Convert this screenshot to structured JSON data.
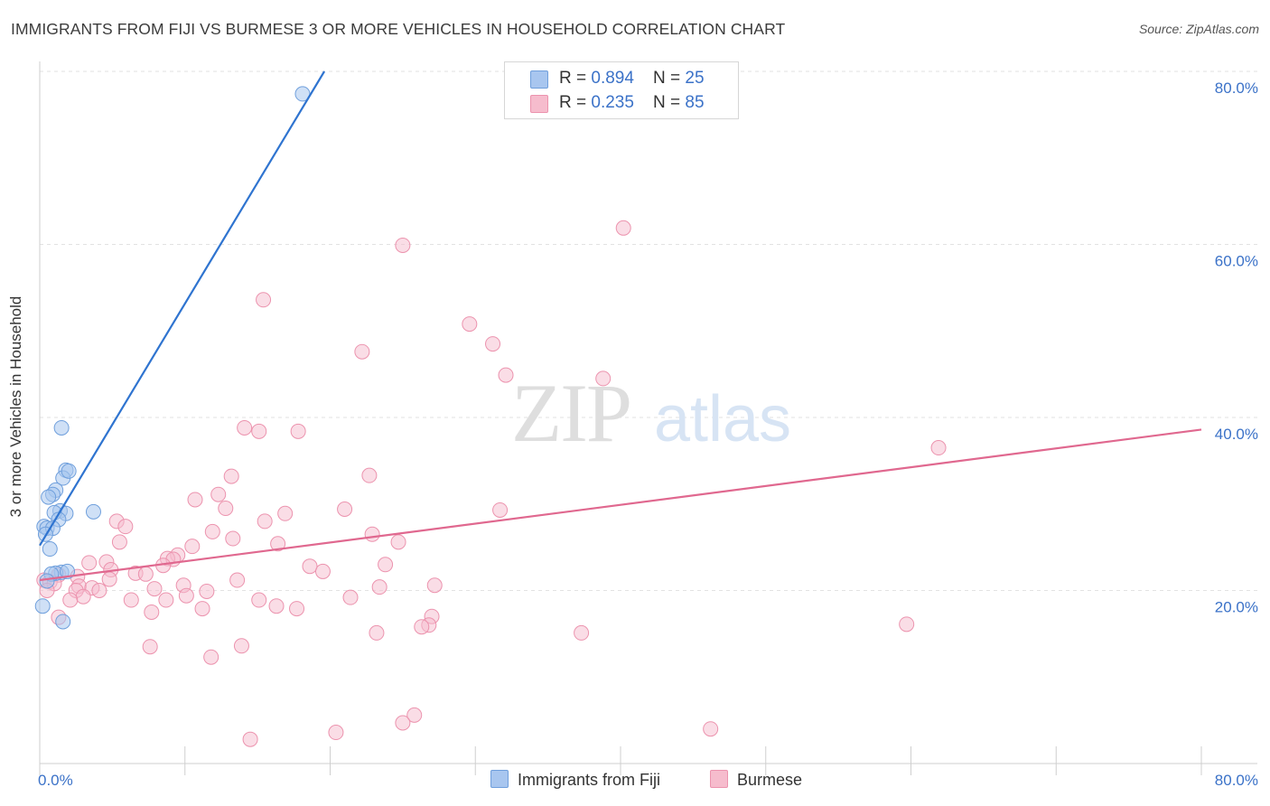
{
  "title": "IMMIGRANTS FROM FIJI VS BURMESE 3 OR MORE VEHICLES IN HOUSEHOLD CORRELATION CHART",
  "source": "Source: ZipAtlas.com",
  "watermark": {
    "zip": "ZIP",
    "atlas": "atlas"
  },
  "colors": {
    "fiji_fill": "#a8c6ef",
    "fiji_stroke": "#6f9fdc",
    "fiji_line": "#2f74d0",
    "burmese_fill": "#f6bccd",
    "burmese_stroke": "#ec93ae",
    "burmese_line": "#e0688f",
    "axis_value_text": "#3b72c8"
  },
  "legend_top": {
    "rows": [
      {
        "r_label": "R = ",
        "r_value": "0.894",
        "n_label": "N = ",
        "n_value": "25"
      },
      {
        "r_label": "R = ",
        "r_value": "0.235",
        "n_label": "N = ",
        "n_value": "85"
      }
    ]
  },
  "legend_bottom": {
    "fiji": "Immigrants from Fiji",
    "burmese": "Burmese"
  },
  "chart_data": {
    "type": "scatter",
    "title": "IMMIGRANTS FROM FIJI VS BURMESE 3 OR MORE VEHICLES IN HOUSEHOLD CORRELATION CHART",
    "xlabel": "",
    "ylabel": "3 or more Vehicles in Household",
    "xlim": [
      0,
      80
    ],
    "ylim": [
      0,
      80
    ],
    "x_tick_labels": [
      "0.0%",
      "80.0%"
    ],
    "y_tick_labels": [
      {
        "value": 20,
        "label": "20.0%"
      },
      {
        "value": 40,
        "label": "40.0%"
      },
      {
        "value": 60,
        "label": "60.0%"
      },
      {
        "value": 80,
        "label": "80.0%"
      }
    ],
    "grid": true,
    "series": [
      {
        "name": "Immigrants from Fiji",
        "color": "#a8c6ef",
        "r": 0.894,
        "n": 25,
        "trend": {
          "x": [
            0.0,
            19.6
          ],
          "y": [
            25.2,
            80.0
          ]
        },
        "points": [
          [
            18.1,
            77.4
          ],
          [
            1.5,
            38.8
          ],
          [
            1.8,
            33.9
          ],
          [
            1.6,
            33.0
          ],
          [
            2.0,
            33.8
          ],
          [
            1.1,
            31.6
          ],
          [
            0.9,
            31.1
          ],
          [
            0.6,
            30.8
          ],
          [
            1.4,
            29.2
          ],
          [
            1.8,
            28.9
          ],
          [
            1.0,
            29.0
          ],
          [
            3.7,
            29.1
          ],
          [
            1.3,
            28.2
          ],
          [
            0.3,
            27.4
          ],
          [
            0.5,
            27.2
          ],
          [
            0.9,
            27.2
          ],
          [
            0.4,
            26.5
          ],
          [
            0.7,
            24.8
          ],
          [
            1.5,
            22.1
          ],
          [
            1.1,
            22.0
          ],
          [
            0.8,
            21.9
          ],
          [
            1.9,
            22.2
          ],
          [
            0.5,
            21.1
          ],
          [
            0.2,
            18.2
          ],
          [
            1.6,
            16.4
          ]
        ]
      },
      {
        "name": "Burmese",
        "color": "#f6bccd",
        "r": 0.235,
        "n": 85,
        "trend": {
          "x": [
            0.0,
            80.0
          ],
          "y": [
            21.2,
            38.6
          ]
        },
        "points": [
          [
            40.2,
            61.9
          ],
          [
            25.0,
            59.9
          ],
          [
            15.4,
            53.6
          ],
          [
            29.6,
            50.8
          ],
          [
            31.2,
            48.5
          ],
          [
            22.2,
            47.6
          ],
          [
            32.1,
            44.9
          ],
          [
            38.8,
            44.5
          ],
          [
            61.9,
            36.5
          ],
          [
            14.1,
            38.8
          ],
          [
            15.1,
            38.4
          ],
          [
            17.8,
            38.4
          ],
          [
            22.7,
            33.3
          ],
          [
            13.2,
            33.2
          ],
          [
            12.3,
            31.1
          ],
          [
            10.7,
            30.5
          ],
          [
            12.8,
            29.5
          ],
          [
            21.0,
            29.4
          ],
          [
            31.7,
            29.3
          ],
          [
            16.9,
            28.9
          ],
          [
            5.3,
            28.0
          ],
          [
            15.5,
            28.0
          ],
          [
            5.9,
            27.4
          ],
          [
            11.9,
            26.8
          ],
          [
            22.9,
            26.5
          ],
          [
            13.3,
            26.0
          ],
          [
            5.5,
            25.6
          ],
          [
            24.7,
            25.6
          ],
          [
            16.4,
            25.4
          ],
          [
            10.5,
            25.1
          ],
          [
            9.5,
            24.1
          ],
          [
            8.8,
            23.7
          ],
          [
            9.2,
            23.6
          ],
          [
            3.4,
            23.2
          ],
          [
            4.6,
            23.3
          ],
          [
            8.5,
            22.9
          ],
          [
            23.8,
            23.0
          ],
          [
            18.6,
            22.8
          ],
          [
            19.5,
            22.2
          ],
          [
            4.9,
            22.4
          ],
          [
            6.6,
            22.0
          ],
          [
            7.3,
            21.9
          ],
          [
            1.3,
            21.8
          ],
          [
            2.6,
            21.6
          ],
          [
            4.8,
            21.3
          ],
          [
            13.6,
            21.2
          ],
          [
            0.3,
            21.2
          ],
          [
            0.7,
            21.0
          ],
          [
            1.0,
            20.8
          ],
          [
            9.9,
            20.6
          ],
          [
            2.7,
            20.5
          ],
          [
            27.2,
            20.6
          ],
          [
            3.6,
            20.3
          ],
          [
            23.4,
            20.4
          ],
          [
            7.9,
            20.2
          ],
          [
            0.5,
            20.0
          ],
          [
            4.1,
            20.0
          ],
          [
            2.5,
            20.0
          ],
          [
            11.5,
            19.9
          ],
          [
            3.0,
            19.3
          ],
          [
            10.1,
            19.4
          ],
          [
            2.1,
            18.9
          ],
          [
            6.3,
            18.9
          ],
          [
            8.7,
            18.9
          ],
          [
            15.1,
            18.9
          ],
          [
            21.4,
            19.2
          ],
          [
            16.3,
            18.2
          ],
          [
            17.7,
            17.9
          ],
          [
            11.2,
            17.9
          ],
          [
            7.7,
            17.5
          ],
          [
            27.0,
            17.0
          ],
          [
            1.3,
            16.9
          ],
          [
            26.8,
            16.0
          ],
          [
            59.7,
            16.1
          ],
          [
            26.3,
            15.8
          ],
          [
            23.2,
            15.1
          ],
          [
            37.3,
            15.1
          ],
          [
            7.6,
            13.5
          ],
          [
            13.9,
            13.6
          ],
          [
            11.8,
            12.3
          ],
          [
            25.8,
            5.6
          ],
          [
            25.0,
            4.7
          ],
          [
            46.2,
            4.0
          ],
          [
            20.4,
            3.6
          ],
          [
            14.5,
            2.8
          ]
        ]
      }
    ]
  }
}
